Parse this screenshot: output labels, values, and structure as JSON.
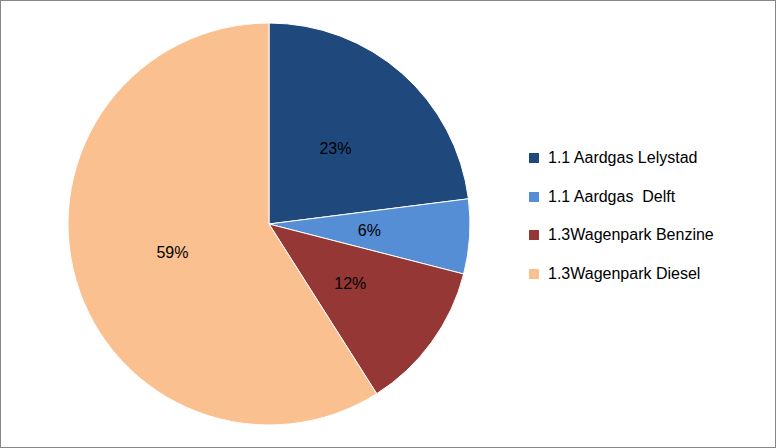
{
  "chart_data": {
    "type": "pie",
    "categories": [
      "1.1 Aardgas Lelystad",
      "1.1 Aardgas  Delft",
      "1.3Wagenpark Benzine",
      "1.3Wagenpark Diesel"
    ],
    "values": [
      23,
      6,
      12,
      59
    ],
    "value_labels": [
      "23%",
      "6%",
      "12%",
      "59%"
    ],
    "colors": [
      "#1f497d",
      "#558ed5",
      "#953735",
      "#fac090"
    ],
    "data_labels": true,
    "legend": "right"
  }
}
